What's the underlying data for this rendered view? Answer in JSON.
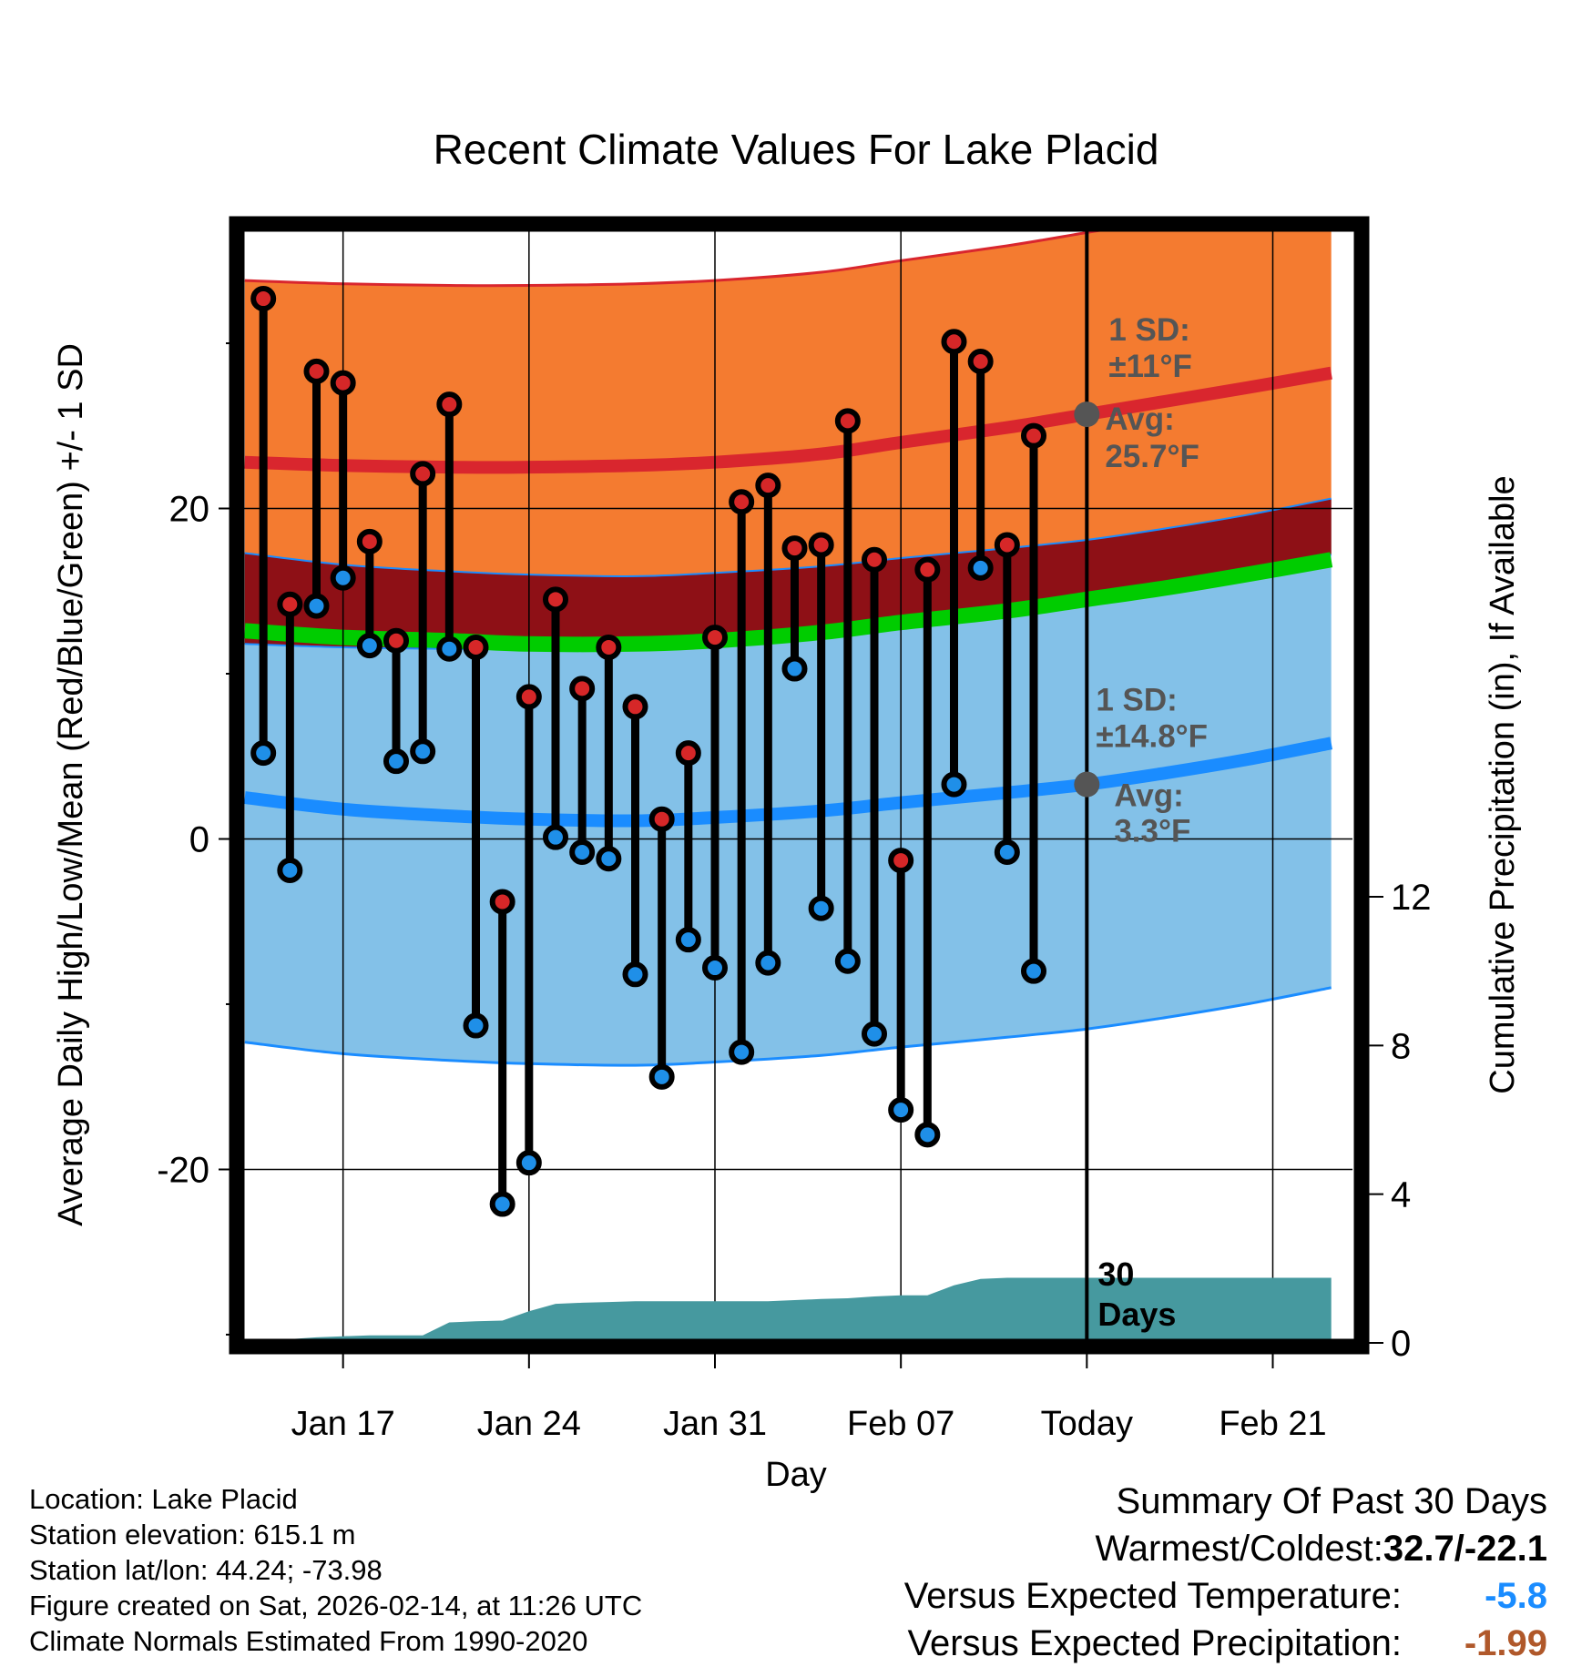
{
  "chart_data": {
    "type": "line",
    "title": "Recent Climate Values For Lake Placid",
    "xlabel": "Day",
    "ylabel": "Average Daily High/Low/Mean (Red/Blue/Green) +/- 1 SD",
    "y2label": "Cumulative Precipitation (in), If Available",
    "xlim": [
      -1,
      41
    ],
    "ylim": [
      -30.5,
      37
    ],
    "y2lim": [
      0,
      30
    ],
    "x_ticks": [
      {
        "x": 3,
        "label": "Jan 17"
      },
      {
        "x": 10,
        "label": "Jan 24"
      },
      {
        "x": 17,
        "label": "Jan 31"
      },
      {
        "x": 24,
        "label": "Feb 07"
      },
      {
        "x": 31,
        "label": "Today"
      },
      {
        "x": 38,
        "label": "Feb 21"
      }
    ],
    "y_ticks": [
      -20,
      0,
      20
    ],
    "y_minor_ticks": [
      -30,
      -10,
      10,
      30
    ],
    "y2_ticks": [
      0,
      4,
      8,
      12
    ],
    "today_x": 31,
    "window_label": "30 Days",
    "normal_x": [
      -0.7,
      3,
      7,
      10,
      14,
      17,
      21,
      24,
      28,
      31,
      34,
      37,
      40.2
    ],
    "normal_high_avg": [
      22.8,
      22.6,
      22.5,
      22.5,
      22.6,
      22.8,
      23.3,
      24.0,
      24.9,
      25.7,
      26.5,
      27.3,
      28.2
    ],
    "normal_high_sd": 11,
    "normal_low_avg": [
      2.5,
      1.8,
      1.4,
      1.2,
      1.1,
      1.3,
      1.7,
      2.2,
      2.8,
      3.3,
      4.0,
      4.8,
      5.8
    ],
    "normal_low_sd": 14.8,
    "normal_mean": [
      12.6,
      12.2,
      12.0,
      11.8,
      11.8,
      12.0,
      12.5,
      13.1,
      13.8,
      14.5,
      15.2,
      16.0,
      16.9
    ],
    "series": [
      {
        "name": "Daily High",
        "color": "#d62728",
        "x": [
          0,
          1,
          2,
          3,
          4,
          5,
          6,
          7,
          8,
          9,
          10,
          11,
          12,
          13,
          14,
          15,
          16,
          17,
          18,
          19,
          20,
          21,
          22,
          23,
          24,
          25,
          26,
          27,
          28,
          29,
          30
        ],
        "values": [
          32.7,
          14.2,
          28.3,
          27.6,
          18.0,
          12.0,
          22.1,
          26.3,
          11.6,
          -3.8,
          8.6,
          14.5,
          9.1,
          11.6,
          8.0,
          1.2,
          5.2,
          12.2,
          20.4,
          21.4,
          17.6,
          17.8,
          25.3,
          16.9,
          -1.3,
          16.3,
          30.1,
          28.9,
          17.8,
          24.4,
          null
        ]
      },
      {
        "name": "Daily Low",
        "color": "#1f8fe8",
        "x": [
          0,
          1,
          2,
          3,
          4,
          5,
          6,
          7,
          8,
          9,
          10,
          11,
          12,
          13,
          14,
          15,
          16,
          17,
          18,
          19,
          20,
          21,
          22,
          23,
          24,
          25,
          26,
          27,
          28,
          29,
          30
        ],
        "values": [
          5.2,
          -1.9,
          14.1,
          15.8,
          11.7,
          4.7,
          5.3,
          11.5,
          -11.3,
          -22.1,
          -19.6,
          0.1,
          -0.8,
          -1.2,
          -8.2,
          -14.4,
          -6.1,
          -7.8,
          -12.9,
          -7.5,
          10.3,
          -4.2,
          -7.4,
          -11.8,
          -16.4,
          -17.9,
          3.3,
          16.4,
          -0.8,
          -8.0,
          null
        ]
      }
    ],
    "precip": {
      "x": [
        -0.7,
        0,
        1,
        2,
        3,
        4,
        5,
        6,
        7,
        8,
        9,
        10,
        11,
        12,
        13,
        14,
        15,
        16,
        17,
        18,
        19,
        20,
        21,
        22,
        23,
        24,
        25,
        26,
        27,
        28,
        29,
        30,
        40.2
      ],
      "values": [
        0.0,
        0.05,
        0.1,
        0.15,
        0.18,
        0.2,
        0.2,
        0.2,
        0.55,
        0.58,
        0.6,
        0.85,
        1.05,
        1.08,
        1.1,
        1.12,
        1.12,
        1.12,
        1.12,
        1.12,
        1.12,
        1.15,
        1.18,
        1.2,
        1.25,
        1.28,
        1.28,
        1.55,
        1.72,
        1.75,
        1.75,
        1.75,
        1.75
      ]
    },
    "annotations": [
      {
        "x": 31,
        "y": 25.7,
        "label_1": "1 SD:",
        "label_2": "±11°F",
        "label_3": "Avg:",
        "label_4": "25.7°F"
      },
      {
        "x": 31,
        "y": 3.3,
        "label_1": "1 SD:",
        "label_2": "±14.8°F",
        "label_3": "Avg:",
        "label_4": "3.3°F"
      }
    ],
    "colors": {
      "high_band": "#f47b30",
      "high_line": "#d9262e",
      "overlap": "#8e1016",
      "low_band": "#83c1e8",
      "low_line": "#1a8cff",
      "mean_line": "#00cc00",
      "precip": "#46999f",
      "annotation": "#555555"
    }
  },
  "info": {
    "location": "Location: Lake Placid",
    "elevation": "Station elevation: 615.1 m",
    "latlon": "Station lat/lon: 44.24; -73.98",
    "created": "Figure created on Sat, 2026-02-14, at 11:26 UTC",
    "normals": "Climate Normals Estimated From 1990-2020"
  },
  "summary": {
    "title": "Summary Of Past 30 Days",
    "warm_cold_label": "Warmest/Coldest:",
    "warm_cold_value": "32.7/-22.1",
    "temp_label": "Versus Expected Temperature:",
    "temp_value": "-5.8",
    "temp_color": "#1a8cff",
    "precip_label": "Versus Expected Precipitation:",
    "precip_value": "-1.99",
    "precip_color": "#b0582a"
  }
}
